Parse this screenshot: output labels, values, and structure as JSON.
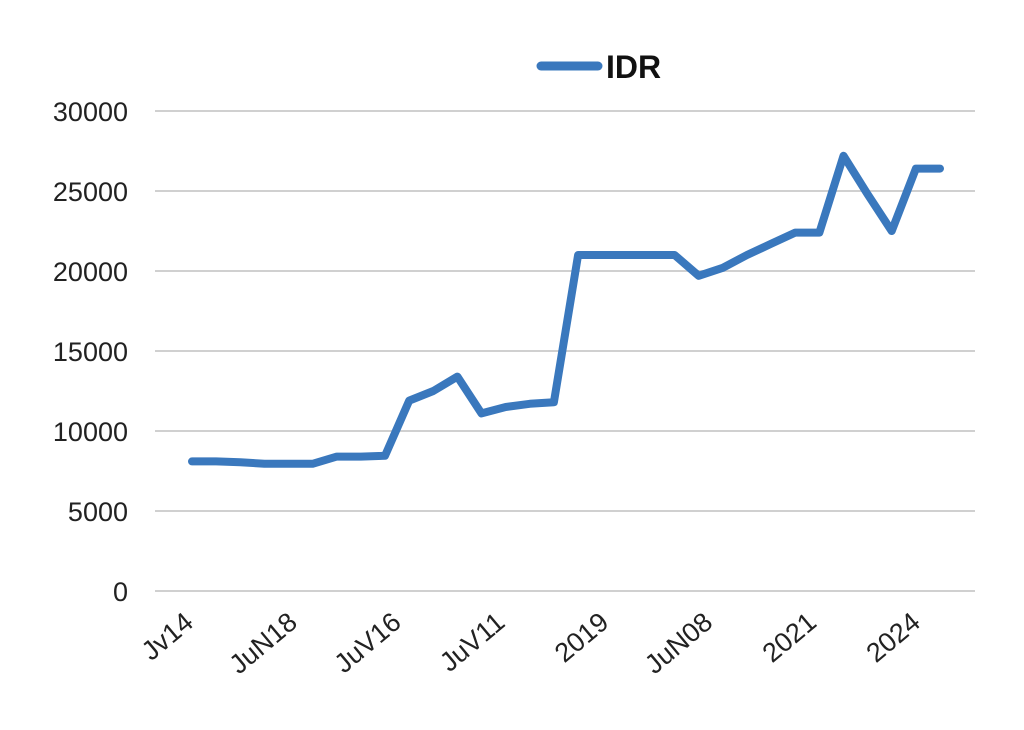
{
  "chart_data": {
    "type": "line",
    "title": "",
    "xlabel": "",
    "ylabel": "",
    "legend": {
      "position": "top-center",
      "entries": [
        "IDR"
      ]
    },
    "grid": true,
    "ylim": [
      0,
      30000
    ],
    "y_ticks": [
      0,
      5000,
      10000,
      15000,
      20000,
      25000,
      30000
    ],
    "x_tick_labels": [
      "Jv14",
      "JuN18",
      "JuV16",
      "JuV11",
      "2019",
      "JuN08",
      "2021",
      "2024"
    ],
    "series": [
      {
        "name": "IDR",
        "color": "#3a78bd",
        "values": [
          8100,
          8100,
          8050,
          7950,
          7950,
          7950,
          8400,
          8400,
          8450,
          11900,
          12500,
          13400,
          11100,
          11500,
          11700,
          11800,
          21000,
          21000,
          21000,
          21000,
          21000,
          19700,
          20200,
          21000,
          21700,
          22400,
          22400,
          27200,
          24800,
          22500,
          26400,
          26400
        ]
      }
    ]
  }
}
